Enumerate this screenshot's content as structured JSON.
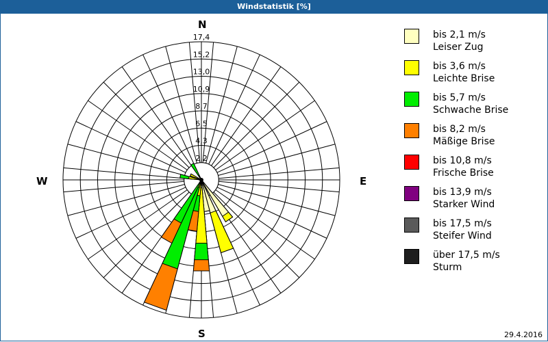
{
  "window": {
    "title": "Windstatistik [%]"
  },
  "compass": {
    "north": "N",
    "east": "E",
    "south": "S",
    "west": "W"
  },
  "legend": {
    "items": [
      {
        "range": "bis 2,1 m/s",
        "name": "Leiser Zug",
        "color": "#ffffc0"
      },
      {
        "range": "bis 3,6 m/s",
        "name": "Leichte Brise",
        "color": "#ffff00"
      },
      {
        "range": "bis 5,7 m/s",
        "name": "Schwache Brise",
        "color": "#00ee00"
      },
      {
        "range": "bis 8,2 m/s",
        "name": "Mäßige Brise",
        "color": "#ff8000"
      },
      {
        "range": "bis 10,8 m/s",
        "name": "Frische Brise",
        "color": "#ff0000"
      },
      {
        "range": "bis 13,9 m/s",
        "name": "Starker Wind",
        "color": "#800080"
      },
      {
        "range": "bis 17,5 m/s",
        "name": "Steifer Wind",
        "color": "#5a5a5a"
      },
      {
        "range": "über 17,5 m/s",
        "name": "Sturm",
        "color": "#1e1e1e"
      }
    ]
  },
  "footer": {
    "date": "29.4.2016"
  },
  "chart_data": {
    "type": "polar-stacked-bar (wind rose)",
    "title": "Windstatistik [%]",
    "unit": "%",
    "radial_ticks": [
      "2,2",
      "4,3",
      "6,5",
      "8,7",
      "10,9",
      "13,0",
      "15,2",
      "17,4"
    ],
    "radial_max": 17.4,
    "sector_width_deg": 10,
    "sector_count": 36,
    "directions_labels": [
      "N",
      "E",
      "S",
      "W"
    ],
    "series_names": [
      "bis 2,1 m/s",
      "bis 3,6 m/s",
      "bis 5,7 m/s",
      "bis 8,2 m/s",
      "bis 10,8 m/s",
      "bis 13,9 m/s",
      "bis 17,5 m/s",
      "über 17,5 m/s"
    ],
    "note": "values are cumulative % per direction (outer edge of each colored band)",
    "petals": [
      {
        "dir_deg": 145,
        "cumulative": [
          5.3,
          6.1,
          6.1,
          6.1
        ]
      },
      {
        "dir_deg": 160,
        "cumulative": [
          4.3,
          9.5,
          9.5,
          9.5
        ]
      },
      {
        "dir_deg": 170,
        "cumulative": [
          4.0,
          4.0,
          4.0,
          4.0
        ]
      },
      {
        "dir_deg": 180,
        "cumulative": [
          1.0,
          8.0,
          10.1,
          11.5
        ]
      },
      {
        "dir_deg": 190,
        "cumulative": [
          0.5,
          2.0,
          4.0,
          6.5
        ]
      },
      {
        "dir_deg": 200,
        "cumulative": [
          0.5,
          1.0,
          11.6,
          17.0
        ]
      },
      {
        "dir_deg": 210,
        "cumulative": [
          0.3,
          0.5,
          6.0,
          8.8
        ]
      },
      {
        "dir_deg": 280,
        "cumulative": [
          0.3,
          1.6,
          2.7,
          2.7
        ]
      },
      {
        "dir_deg": 295,
        "cumulative": [
          0.3,
          1.5,
          1.5,
          1.5
        ]
      },
      {
        "dir_deg": 330,
        "cumulative": [
          0.2,
          0.6,
          2.3,
          2.3
        ]
      }
    ]
  }
}
